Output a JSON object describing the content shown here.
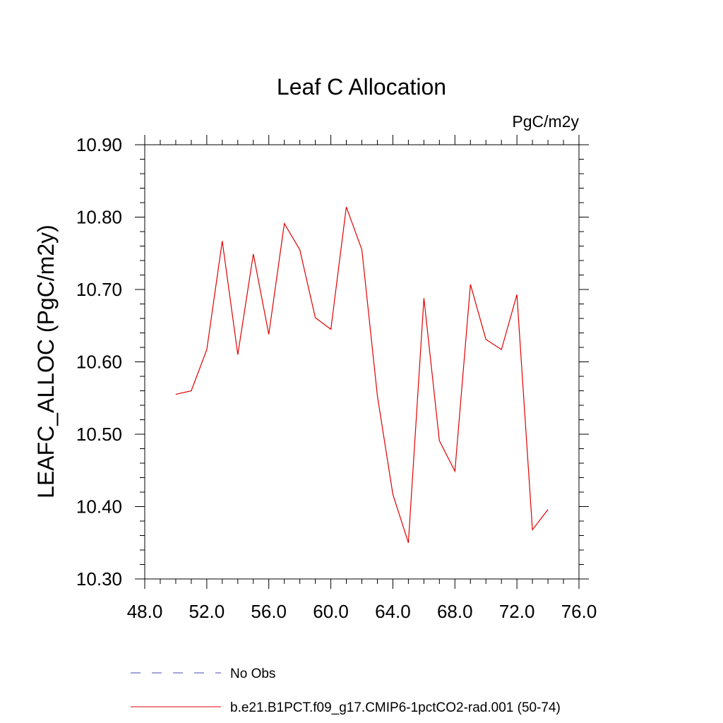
{
  "chart_data": {
    "type": "line",
    "title": "Leaf C Allocation",
    "units_label": "PgC/m2y",
    "xlabel": "",
    "ylabel": "LEAFC_ALLOC  (PgC/m2y)",
    "xlim": [
      48.0,
      76.0
    ],
    "ylim": [
      10.3,
      10.9
    ],
    "x_ticks": [
      48.0,
      52.0,
      56.0,
      60.0,
      64.0,
      68.0,
      72.0,
      76.0
    ],
    "x_tick_labels": [
      "48.0",
      "52.0",
      "56.0",
      "60.0",
      "64.0",
      "68.0",
      "72.0",
      "76.0"
    ],
    "y_ticks": [
      10.3,
      10.4,
      10.5,
      10.6,
      10.7,
      10.8,
      10.9
    ],
    "y_tick_labels": [
      "10.30",
      "10.40",
      "10.50",
      "10.60",
      "10.70",
      "10.80",
      "10.90"
    ],
    "grid": false,
    "legend_position": "bottom",
    "series": [
      {
        "name": "No Obs",
        "color": "#4b4bb4",
        "dash": true,
        "x": [],
        "values": []
      },
      {
        "name": "b.e21.B1PCT.f09_g17.CMIP6-1pctCO2-rad.001 (50-74)",
        "color": "#e00000",
        "dash": false,
        "x": [
          50,
          51,
          52,
          53,
          54,
          55,
          56,
          57,
          58,
          59,
          60,
          61,
          62,
          63,
          64,
          65,
          66,
          67,
          68,
          69,
          70,
          71,
          72,
          73,
          74
        ],
        "values": [
          10.555,
          10.56,
          10.617,
          10.767,
          10.61,
          10.749,
          10.638,
          10.791,
          10.755,
          10.661,
          10.645,
          10.814,
          10.755,
          10.553,
          10.417,
          10.35,
          10.688,
          10.491,
          10.449,
          10.707,
          10.631,
          10.617,
          10.693,
          10.368,
          10.396
        ]
      }
    ]
  }
}
